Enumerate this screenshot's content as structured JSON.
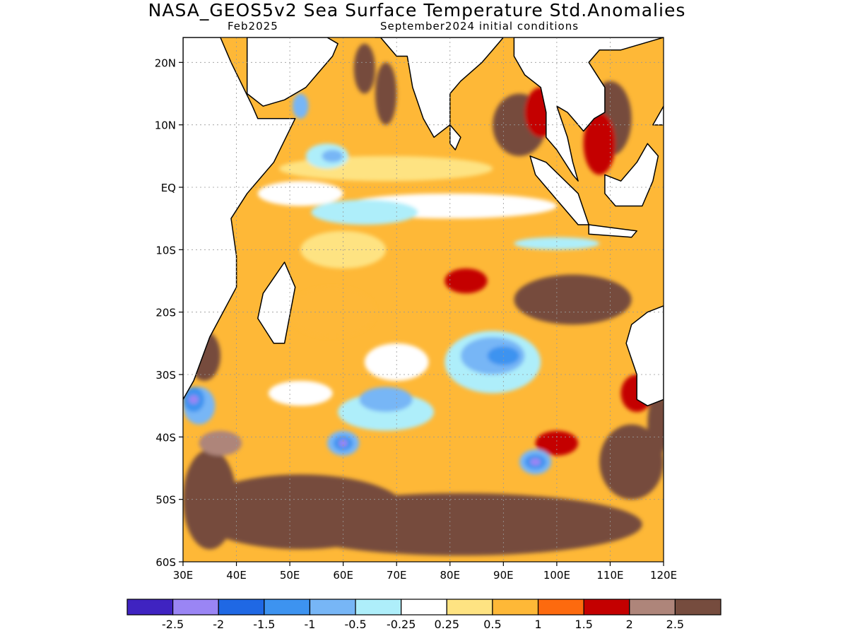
{
  "title": "NASA_GEOS5v2 Sea Surface Temperature Std.Anomalies",
  "subtitle_left": "Feb2025",
  "subtitle_right": "September2024 initial conditions",
  "map": {
    "lon_range": [
      30,
      120
    ],
    "lat_range": [
      -60,
      24
    ],
    "lat_ticks": [
      {
        "lat": 20,
        "label": "20N"
      },
      {
        "lat": 10,
        "label": "10N"
      },
      {
        "lat": 0,
        "label": "EQ"
      },
      {
        "lat": -10,
        "label": "10S"
      },
      {
        "lat": -20,
        "label": "20S"
      },
      {
        "lat": -30,
        "label": "30S"
      },
      {
        "lat": -40,
        "label": "40S"
      },
      {
        "lat": -50,
        "label": "50S"
      },
      {
        "lat": -60,
        "label": "60S"
      }
    ],
    "lon_ticks": [
      {
        "lon": 30,
        "label": "30E"
      },
      {
        "lon": 40,
        "label": "40E"
      },
      {
        "lon": 50,
        "label": "50E"
      },
      {
        "lon": 60,
        "label": "60E"
      },
      {
        "lon": 70,
        "label": "70E"
      },
      {
        "lon": 80,
        "label": "80E"
      },
      {
        "lon": 90,
        "label": "90E"
      },
      {
        "lon": 100,
        "label": "100E"
      },
      {
        "lon": 110,
        "label": "110E"
      },
      {
        "lon": 120,
        "label": "120E"
      }
    ]
  },
  "legend": {
    "colors": [
      "#3f23c1",
      "#9a85f4",
      "#1f68e4",
      "#3d93f0",
      "#77b6f6",
      "#aeeefa",
      "#ffffff",
      "#fee382",
      "#feb837",
      "#fd6a0e",
      "#c40000",
      "#ae857a",
      "#764c3e"
    ],
    "labels": [
      "-2.5",
      "-2",
      "-1.5",
      "-1",
      "-0.5",
      "-0.25",
      "0.25",
      "0.5",
      "1",
      "1.5",
      "2",
      "2.5"
    ]
  },
  "land_color": "#ffffff",
  "blobs": [
    {
      "lon": 82,
      "lat": -54,
      "rx": 34,
      "ry": 5,
      "color": "#764c3e"
    },
    {
      "lon": 52,
      "lat": -52,
      "rx": 20,
      "ry": 6,
      "color": "#764c3e"
    },
    {
      "lon": 35,
      "lat": -50,
      "rx": 5,
      "ry": 8,
      "color": "#764c3e"
    },
    {
      "lon": 114,
      "lat": -44,
      "rx": 6,
      "ry": 6,
      "color": "#764c3e"
    },
    {
      "lon": 103,
      "lat": -18,
      "rx": 11,
      "ry": 4,
      "color": "#764c3e"
    },
    {
      "lon": 68,
      "lat": 15,
      "rx": 2,
      "ry": 5,
      "color": "#764c3e"
    },
    {
      "lon": 93,
      "lat": 10,
      "rx": 5,
      "ry": 5,
      "color": "#764c3e"
    },
    {
      "lon": 110,
      "lat": 11,
      "rx": 4,
      "ry": 6,
      "color": "#764c3e"
    },
    {
      "lon": 64,
      "lat": 19,
      "rx": 2,
      "ry": 4,
      "color": "#764c3e"
    },
    {
      "lon": 34,
      "lat": -27,
      "rx": 3,
      "ry": 4,
      "color": "#764c3e"
    },
    {
      "lon": 119,
      "lat": -38,
      "rx": 2,
      "ry": 5,
      "color": "#764c3e"
    },
    {
      "lon": 37,
      "lat": -41,
      "rx": 4,
      "ry": 2,
      "color": "#ae857a"
    },
    {
      "lon": 83,
      "lat": -15,
      "rx": 4,
      "ry": 2,
      "color": "#c40000"
    },
    {
      "lon": 100,
      "lat": -41,
      "rx": 4,
      "ry": 2,
      "color": "#c40000"
    },
    {
      "lon": 97,
      "lat": 12,
      "rx": 3,
      "ry": 4,
      "color": "#c40000"
    },
    {
      "lon": 108,
      "lat": 7,
      "rx": 3,
      "ry": 5,
      "color": "#c40000"
    },
    {
      "lon": 115,
      "lat": -33,
      "rx": 3,
      "ry": 3,
      "color": "#c40000"
    },
    {
      "lon": 68,
      "lat": 3,
      "rx": 20,
      "ry": 2,
      "color": "#fee382"
    },
    {
      "lon": 60,
      "lat": -10,
      "rx": 8,
      "ry": 3,
      "color": "#fee382"
    },
    {
      "lon": 58,
      "lat": -20,
      "rx": 8,
      "ry": 4,
      "color": "#feb837"
    },
    {
      "lon": 70,
      "lat": -28,
      "rx": 6,
      "ry": 3,
      "color": "#ffffff"
    },
    {
      "lon": 52,
      "lat": -33,
      "rx": 6,
      "ry": 2,
      "color": "#ffffff"
    },
    {
      "lon": 80,
      "lat": -3,
      "rx": 20,
      "ry": 2,
      "color": "#ffffff"
    },
    {
      "lon": 52,
      "lat": -1,
      "rx": 8,
      "ry": 2,
      "color": "#ffffff"
    },
    {
      "lon": 88,
      "lat": -28,
      "rx": 9,
      "ry": 5,
      "color": "#aeeefa"
    },
    {
      "lon": 68,
      "lat": -36,
      "rx": 9,
      "ry": 3,
      "color": "#aeeefa"
    },
    {
      "lon": 64,
      "lat": -4,
      "rx": 10,
      "ry": 2,
      "color": "#aeeefa"
    },
    {
      "lon": 100,
      "lat": -9,
      "rx": 8,
      "ry": 1,
      "color": "#aeeefa"
    },
    {
      "lon": 57,
      "lat": 5,
      "rx": 4,
      "ry": 2,
      "color": "#aeeefa"
    },
    {
      "lon": 88,
      "lat": -27,
      "rx": 6,
      "ry": 3,
      "color": "#77b6f6"
    },
    {
      "lon": 68,
      "lat": -34,
      "rx": 5,
      "ry": 2,
      "color": "#77b6f6"
    },
    {
      "lon": 58,
      "lat": 5,
      "rx": 2,
      "ry": 1,
      "color": "#77b6f6"
    },
    {
      "lon": 52,
      "lat": 13,
      "rx": 1.5,
      "ry": 2,
      "color": "#77b6f6"
    },
    {
      "lon": 33,
      "lat": -35,
      "rx": 3,
      "ry": 3,
      "color": "#77b6f6"
    },
    {
      "lon": 60,
      "lat": -41,
      "rx": 3,
      "ry": 2,
      "color": "#77b6f6"
    },
    {
      "lon": 96,
      "lat": -44,
      "rx": 3,
      "ry": 2,
      "color": "#77b6f6"
    },
    {
      "lon": 90,
      "lat": -27,
      "rx": 3,
      "ry": 1.5,
      "color": "#3d93f0"
    },
    {
      "lon": 60,
      "lat": -41,
      "rx": 1.8,
      "ry": 1.2,
      "color": "#3d93f0"
    },
    {
      "lon": 96,
      "lat": -44,
      "rx": 2,
      "ry": 1.2,
      "color": "#3d93f0"
    },
    {
      "lon": 32,
      "lat": -34,
      "rx": 2,
      "ry": 2,
      "color": "#3d93f0"
    },
    {
      "lon": 60,
      "lat": -41,
      "rx": 0.8,
      "ry": 0.6,
      "color": "#9a85f4"
    },
    {
      "lon": 96,
      "lat": -44,
      "rx": 1,
      "ry": 0.6,
      "color": "#9a85f4"
    },
    {
      "lon": 32,
      "lat": -34,
      "rx": 0.9,
      "ry": 0.7,
      "color": "#9a85f4"
    }
  ],
  "land": [
    {
      "name": "africa-land",
      "pts": [
        [
          30,
          24
        ],
        [
          30,
          -34
        ],
        [
          32,
          -31
        ],
        [
          35,
          -24
        ],
        [
          40,
          -16
        ],
        [
          40,
          -11
        ],
        [
          39,
          -5
        ],
        [
          42,
          -1
        ],
        [
          47,
          4
        ],
        [
          51,
          11
        ],
        [
          44,
          11
        ],
        [
          43,
          13
        ],
        [
          39,
          20
        ],
        [
          37,
          24
        ]
      ]
    },
    {
      "name": "arabia-land",
      "pts": [
        [
          42,
          24
        ],
        [
          42,
          15
        ],
        [
          45,
          13
        ],
        [
          49,
          14
        ],
        [
          53,
          16
        ],
        [
          55,
          18
        ],
        [
          58,
          21
        ],
        [
          59,
          23
        ],
        [
          57,
          24
        ]
      ]
    },
    {
      "name": "india-land",
      "pts": [
        [
          66,
          24
        ],
        [
          67,
          24
        ],
        [
          70,
          21
        ],
        [
          72,
          21
        ],
        [
          73,
          16
        ],
        [
          75,
          11
        ],
        [
          77,
          8
        ],
        [
          80,
          10
        ],
        [
          80,
          15
        ],
        [
          82,
          17
        ],
        [
          86,
          20
        ],
        [
          88,
          22
        ],
        [
          90,
          24
        ]
      ]
    },
    {
      "name": "madagascar-land",
      "pts": [
        [
          49,
          -12
        ],
        [
          51,
          -16
        ],
        [
          49,
          -25
        ],
        [
          47,
          -25
        ],
        [
          44,
          -21
        ],
        [
          45,
          -17
        ]
      ]
    },
    {
      "name": "srilanka-land",
      "pts": [
        [
          80,
          10
        ],
        [
          82,
          8
        ],
        [
          81,
          6
        ],
        [
          80,
          7
        ]
      ]
    },
    {
      "name": "se-asia-land",
      "pts": [
        [
          92,
          24
        ],
        [
          92,
          21
        ],
        [
          94,
          18
        ],
        [
          97,
          16
        ],
        [
          98,
          12
        ],
        [
          98,
          8
        ],
        [
          100,
          6
        ],
        [
          103,
          2
        ],
        [
          104,
          1
        ],
        [
          103,
          4
        ],
        [
          102,
          8
        ],
        [
          100,
          13
        ],
        [
          102,
          12
        ],
        [
          103,
          11
        ],
        [
          105,
          9
        ],
        [
          107,
          11
        ],
        [
          109,
          12
        ],
        [
          109,
          16
        ],
        [
          106,
          20
        ],
        [
          108,
          22
        ],
        [
          112,
          22
        ],
        [
          120,
          24
        ]
      ]
    },
    {
      "name": "sumatra-land",
      "pts": [
        [
          95,
          5
        ],
        [
          98,
          4
        ],
        [
          104,
          -1
        ],
        [
          106,
          -6
        ],
        [
          104,
          -6
        ],
        [
          100,
          -2
        ],
        [
          96,
          2
        ]
      ]
    },
    {
      "name": "java-land",
      "pts": [
        [
          106,
          -6
        ],
        [
          115,
          -7
        ],
        [
          114,
          -8
        ],
        [
          106,
          -7.5
        ]
      ]
    },
    {
      "name": "borneo-land",
      "pts": [
        [
          109,
          2
        ],
        [
          112,
          1
        ],
        [
          115,
          4
        ],
        [
          117,
          7
        ],
        [
          119,
          5
        ],
        [
          118,
          1
        ],
        [
          116,
          -3
        ],
        [
          111,
          -3
        ],
        [
          109,
          -1
        ]
      ]
    },
    {
      "name": "australia-land",
      "pts": [
        [
          114,
          -22
        ],
        [
          117,
          -20
        ],
        [
          120,
          -19
        ],
        [
          120,
          -34
        ],
        [
          117,
          -35
        ],
        [
          115,
          -34
        ],
        [
          115,
          -30
        ],
        [
          113,
          -25
        ]
      ]
    },
    {
      "name": "philippines-land",
      "pts": [
        [
          118,
          10
        ],
        [
          120,
          13
        ],
        [
          120,
          10
        ]
      ]
    }
  ]
}
